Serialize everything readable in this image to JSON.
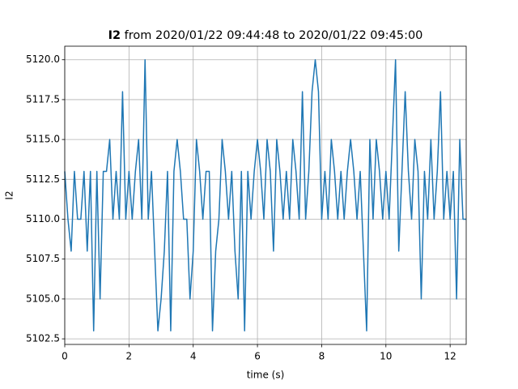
{
  "chart_data": {
    "type": "line",
    "title": "I2",
    "subtitle": " from 2020/01/22 09:44:48 to 2020/01/22 09:45:00",
    "x_label": "time (s)",
    "y_label": "I2",
    "x": [
      0.0,
      0.1,
      0.2,
      0.3,
      0.4,
      0.5,
      0.6,
      0.7,
      0.8,
      0.9,
      1.0,
      1.1,
      1.2,
      1.3,
      1.4,
      1.5,
      1.6,
      1.7,
      1.8,
      1.9,
      2.0,
      2.1,
      2.2,
      2.3,
      2.4,
      2.5,
      2.6,
      2.7,
      2.8,
      2.9,
      3.0,
      3.1,
      3.2,
      3.3,
      3.4,
      3.5,
      3.6,
      3.7,
      3.8,
      3.9,
      4.0,
      4.1,
      4.2,
      4.3,
      4.4,
      4.5,
      4.6,
      4.7,
      4.8,
      4.9,
      5.0,
      5.1,
      5.2,
      5.3,
      5.4,
      5.5,
      5.6,
      5.7,
      5.8,
      5.9,
      6.0,
      6.1,
      6.2,
      6.3,
      6.4,
      6.5,
      6.6,
      6.7,
      6.8,
      6.9,
      7.0,
      7.1,
      7.2,
      7.3,
      7.4,
      7.5,
      7.6,
      7.7,
      7.8,
      7.9,
      8.0,
      8.1,
      8.2,
      8.3,
      8.4,
      8.5,
      8.6,
      8.7,
      8.8,
      8.9,
      9.0,
      9.1,
      9.2,
      9.3,
      9.4,
      9.5,
      9.6,
      9.7,
      9.8,
      9.9,
      10.0,
      10.1,
      10.2,
      10.3,
      10.4,
      10.5,
      10.6,
      10.7,
      10.8,
      10.9,
      11.0,
      11.1,
      11.2,
      11.3,
      11.4,
      11.5,
      11.6,
      11.7,
      11.8,
      11.9,
      12.0,
      12.1,
      12.2,
      12.3,
      12.4,
      12.5
    ],
    "series": [
      {
        "name": "I2",
        "color": "#1f77b4",
        "values": [
          5113,
          5110,
          5108,
          5113,
          5110,
          5110,
          5113,
          5108,
          5113,
          5103,
          5113,
          5105,
          5113,
          5113,
          5115,
          5110,
          5113,
          5110,
          5118,
          5110,
          5113,
          5110,
          5113,
          5115,
          5110,
          5120,
          5110,
          5113,
          5108,
          5103,
          5105,
          5108,
          5113,
          5103,
          5113,
          5115,
          5113,
          5110,
          5110,
          5105,
          5108,
          5115,
          5113,
          5110,
          5113,
          5113,
          5103,
          5108,
          5110,
          5115,
          5113,
          5110,
          5113,
          5108,
          5105,
          5113,
          5103,
          5113,
          5110,
          5113,
          5115,
          5113,
          5110,
          5115,
          5113,
          5108,
          5115,
          5113,
          5110,
          5113,
          5110,
          5115,
          5113,
          5110,
          5118,
          5110,
          5113,
          5118,
          5120,
          5118,
          5110,
          5113,
          5110,
          5115,
          5113,
          5110,
          5113,
          5110,
          5113,
          5115,
          5113,
          5110,
          5113,
          5108,
          5103,
          5115,
          5110,
          5115,
          5113,
          5110,
          5113,
          5110,
          5115,
          5120,
          5108,
          5113,
          5118,
          5113,
          5110,
          5115,
          5113,
          5105,
          5113,
          5110,
          5115,
          5110,
          5113,
          5118,
          5110,
          5113,
          5110,
          5113,
          5105,
          5115,
          5110,
          5110
        ]
      }
    ],
    "xlim": [
      0,
      12.5
    ],
    "ylim": [
      5102.15,
      5120.85
    ],
    "xticks": [
      0,
      2,
      4,
      6,
      8,
      10,
      12
    ],
    "yticks": [
      5102.5,
      {
        "value": 5105,
        "label": "5105.0"
      },
      5107.5,
      {
        "value": 5110,
        "label": "5110.0"
      },
      5112.5,
      {
        "value": 5115,
        "label": "5115.0"
      },
      5117.5,
      {
        "value": 5120,
        "label": "5120.0"
      }
    ],
    "grid": true
  }
}
